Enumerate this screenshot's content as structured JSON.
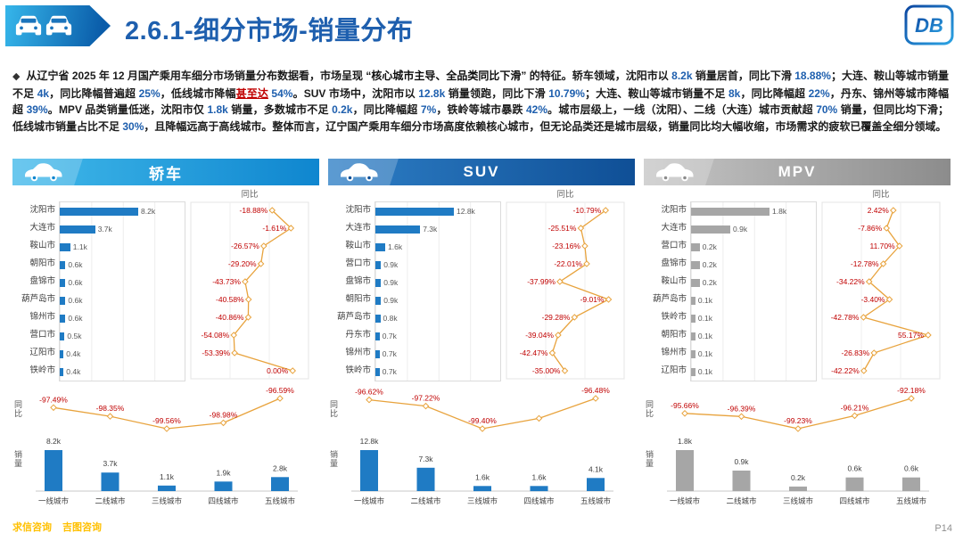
{
  "slide": {
    "title": "2.6.1-细分市场-销量分布",
    "logo_text": "DB",
    "page_number": "P14",
    "footer_links": [
      "求信咨询",
      "吉图咨询"
    ],
    "accent_blue": "#1E5FAE"
  },
  "intro": {
    "bullet": "◆",
    "segments": [
      {
        "t": "从辽宁省 2025 年 12 月国产乘用车细分市场销量分布数据看，市场呈现 ",
        "s": "n"
      },
      {
        "t": "“核心城市主导、全品类同比下滑”",
        "s": "b"
      },
      {
        "t": " 的特征。轿车领域，沈阳市以 ",
        "s": "n"
      },
      {
        "t": "8.2k",
        "s": "num"
      },
      {
        "t": " 销量居首，同比下滑 ",
        "s": "n"
      },
      {
        "t": "18.88%",
        "s": "num"
      },
      {
        "t": "；大连、鞍山等城市销量不足 ",
        "s": "n"
      },
      {
        "t": "4k",
        "s": "num"
      },
      {
        "t": "，同比降幅普遍超 ",
        "s": "n"
      },
      {
        "t": "25%",
        "s": "num"
      },
      {
        "t": "，低线城市降幅",
        "s": "n"
      },
      {
        "t": "甚至达",
        "s": "red"
      },
      {
        "t": " ",
        "s": "n"
      },
      {
        "t": "54%",
        "s": "num"
      },
      {
        "t": "。SUV 市场中，沈阳市以 ",
        "s": "n"
      },
      {
        "t": "12.8k",
        "s": "num"
      },
      {
        "t": " 销量领跑，同比下滑 ",
        "s": "n"
      },
      {
        "t": "10.79%",
        "s": "num"
      },
      {
        "t": "；大连、鞍山等城市销量不足 ",
        "s": "n"
      },
      {
        "t": "8k",
        "s": "num"
      },
      {
        "t": "，同比降幅超 ",
        "s": "n"
      },
      {
        "t": "22%",
        "s": "num"
      },
      {
        "t": "，丹东、锦州等城市降幅超 ",
        "s": "n"
      },
      {
        "t": "39%",
        "s": "num"
      },
      {
        "t": "。MPV 品类销量低迷，沈阳市仅 ",
        "s": "n"
      },
      {
        "t": "1.8k",
        "s": "num"
      },
      {
        "t": " 销量，多数城市不足 ",
        "s": "n"
      },
      {
        "t": "0.2k",
        "s": "num"
      },
      {
        "t": "，同比降幅超 ",
        "s": "n"
      },
      {
        "t": "7%",
        "s": "num"
      },
      {
        "t": "，铁岭等城市暴跌 ",
        "s": "n"
      },
      {
        "t": "42%",
        "s": "num"
      },
      {
        "t": "。城市层级上，一线（沈阳）、二线（大连）城市贡献超 ",
        "s": "n"
      },
      {
        "t": "70%",
        "s": "num"
      },
      {
        "t": " 销量，但同比均下滑；低线城市销量占比不足 ",
        "s": "n"
      },
      {
        "t": "30%",
        "s": "num"
      },
      {
        "t": "，且降幅远高于高线城市。整体而言，辽宁国产乘用车细分市场高度依赖核心城市，但无论品类还是城市层级，销量同比均大幅收缩，市场需求的疲软已覆盖全细分领域。",
        "s": "n"
      }
    ]
  },
  "chart_data": [
    {
      "id": "sedan-city",
      "type": "bar",
      "orientation": "horizontal",
      "panel": "轿车",
      "categories": [
        "沈阳市",
        "大连市",
        "鞍山市",
        "朝阳市",
        "盘锦市",
        "葫芦岛市",
        "锦州市",
        "营口市",
        "辽阳市",
        "铁岭市"
      ],
      "line_range": [
        -60,
        8
      ],
      "series": [
        {
          "name": "销量",
          "type": "bar",
          "unit": "k",
          "values": [
            8.2,
            3.7,
            1.1,
            0.6,
            0.6,
            0.6,
            0.6,
            0.5,
            0.4,
            0.4
          ],
          "labels": [
            "8.2k",
            "3.7k",
            "1.1k",
            "0.6k",
            "0.6k",
            "0.6k",
            "0.6k",
            "0.5k",
            "0.4k",
            "0.4k"
          ]
        },
        {
          "name": "同比",
          "type": "line",
          "values": [
            -18.88,
            -1.61,
            -26.57,
            -29.2,
            -43.73,
            -40.58,
            -40.86,
            -54.08,
            -53.39,
            0.0
          ],
          "labels": [
            "-18.88%",
            "-1.61%",
            "-26.57%",
            "-29.20%",
            "-43.73%",
            "-40.58%",
            "-40.86%",
            "-54.08%",
            "-53.39%",
            "0.00%"
          ]
        }
      ]
    },
    {
      "id": "sedan-tier",
      "type": "bar+line",
      "panel": "轿车",
      "categories": [
        "一线城市",
        "二线城市",
        "三线城市",
        "四线城市",
        "五线城市"
      ],
      "series": [
        {
          "name": "销量",
          "type": "bar",
          "unit": "k",
          "values": [
            8.2,
            3.7,
            1.1,
            1.9,
            2.8
          ],
          "labels": [
            "8.2k",
            "3.7k",
            "1.1k",
            "1.9k",
            "2.8k"
          ]
        },
        {
          "name": "同比",
          "type": "line",
          "values": [
            -97.49,
            -98.35,
            -99.56,
            -98.98,
            -96.59
          ],
          "labels": [
            "-97.49%",
            "-98.35%",
            "-99.56%",
            "-98.98%",
            "-96.59%"
          ]
        }
      ]
    },
    {
      "id": "suv-city",
      "type": "bar",
      "orientation": "horizontal",
      "panel": "SUV",
      "categories": [
        "沈阳市",
        "大连市",
        "鞍山市",
        "营口市",
        "盘锦市",
        "朝阳市",
        "葫芦岛市",
        "丹东市",
        "锦州市",
        "铁岭市"
      ],
      "line_range": [
        -48,
        -4
      ],
      "series": [
        {
          "name": "销量",
          "type": "bar",
          "unit": "k",
          "values": [
            12.8,
            7.3,
            1.6,
            0.9,
            0.9,
            0.9,
            0.8,
            0.7,
            0.7,
            0.7
          ],
          "labels": [
            "12.8k",
            "7.3k",
            "1.6k",
            "0.9k",
            "0.9k",
            "0.9k",
            "0.8k",
            "0.7k",
            "0.7k",
            "0.7k"
          ]
        },
        {
          "name": "同比",
          "type": "line",
          "values": [
            -10.79,
            -25.51,
            -23.16,
            -22.01,
            -37.99,
            -9.01,
            -29.28,
            -39.04,
            -42.47,
            -35.0
          ],
          "labels": [
            "-10.79%",
            "-25.51%",
            "-23.16%",
            "-22.01%",
            "-37.99%",
            "-9.01%",
            "-29.28%",
            "-39.04%",
            "-42.47%",
            "-35.00%"
          ]
        }
      ]
    },
    {
      "id": "suv-tier",
      "type": "bar+line",
      "panel": "SUV",
      "categories": [
        "一线城市",
        "二线城市",
        "三线城市",
        "四线城市",
        "五线城市"
      ],
      "series": [
        {
          "name": "销量",
          "type": "bar",
          "unit": "k",
          "values": [
            12.8,
            7.3,
            1.6,
            1.6,
            4.1
          ],
          "labels": [
            "12.8k",
            "7.3k",
            "1.6k",
            "1.6k",
            "4.1k"
          ]
        },
        {
          "name": "同比",
          "type": "line",
          "values": [
            -96.62,
            -97.22,
            -99.4,
            -98.4,
            -96.48
          ],
          "labels": [
            "-96.62%",
            "-97.22%",
            "-99.40%",
            "",
            "-96.48%"
          ]
        }
      ]
    },
    {
      "id": "mpv-city",
      "type": "bar",
      "orientation": "horizontal",
      "panel": "MPV",
      "categories": [
        "沈阳市",
        "大连市",
        "营口市",
        "盘锦市",
        "鞍山市",
        "葫芦岛市",
        "铁岭市",
        "朝阳市",
        "锦州市",
        "辽阳市"
      ],
      "line_range": [
        -50,
        62
      ],
      "series": [
        {
          "name": "销量",
          "type": "bar",
          "unit": "k",
          "values": [
            1.8,
            0.9,
            0.2,
            0.2,
            0.2,
            0.1,
            0.1,
            0.1,
            0.1,
            0.1
          ],
          "labels": [
            "1.8k",
            "0.9k",
            "0.2k",
            "0.2k",
            "0.2k",
            "0.1k",
            "0.1k",
            "0.1k",
            "0.1k",
            "0.1k"
          ]
        },
        {
          "name": "同比",
          "type": "line",
          "values": [
            2.42,
            -7.86,
            11.7,
            -12.78,
            -34.22,
            -3.4,
            -42.78,
            55.17,
            -26.83,
            -42.22
          ],
          "labels": [
            "2.42%",
            "-7.86%",
            "11.70%",
            "-12.78%",
            "-34.22%",
            "-3.40%",
            "-42.78%",
            "55.17%",
            "-26.83%",
            "-42.22%"
          ]
        }
      ]
    },
    {
      "id": "mpv-tier",
      "type": "bar+line",
      "panel": "MPV",
      "categories": [
        "一线城市",
        "二线城市",
        "三线城市",
        "四线城市",
        "五线城市"
      ],
      "series": [
        {
          "name": "销量",
          "type": "bar",
          "unit": "k",
          "values": [
            1.8,
            0.9,
            0.2,
            0.6,
            0.6
          ],
          "labels": [
            "1.8k",
            "0.9k",
            "0.2k",
            "0.6k",
            "0.6k"
          ]
        },
        {
          "name": "同比",
          "type": "line",
          "values": [
            -95.66,
            -96.39,
            -99.23,
            -96.21,
            -92.18
          ],
          "labels": [
            "-95.66%",
            "-96.39%",
            "-99.23%",
            "-96.21%",
            "-92.18%"
          ]
        }
      ]
    }
  ],
  "panels": [
    {
      "id": "sedan",
      "label": "轿车",
      "icon": "sedan-icon",
      "city_chart": 0,
      "tier_chart": 1,
      "colors": {
        "header_from": "#41B9EA",
        "header_to": "#0F86CF",
        "bar": "#1F7BC4",
        "line": "#E8A33D",
        "pct": "#C00000"
      }
    },
    {
      "id": "suv",
      "label": "SUV",
      "icon": "suv-icon",
      "city_chart": 2,
      "tier_chart": 3,
      "colors": {
        "header_from": "#2E7FC6",
        "header_to": "#0F4F96",
        "bar": "#1F7BC4",
        "line": "#E8A33D",
        "pct": "#C00000"
      }
    },
    {
      "id": "mpv",
      "label": "MPV",
      "icon": "mpv-icon",
      "city_chart": 4,
      "tier_chart": 5,
      "colors": {
        "header_from": "#C6C6C6",
        "header_to": "#8C8C8C",
        "bar": "#A6A6A6",
        "line": "#E8A33D",
        "pct": "#C00000"
      }
    }
  ]
}
